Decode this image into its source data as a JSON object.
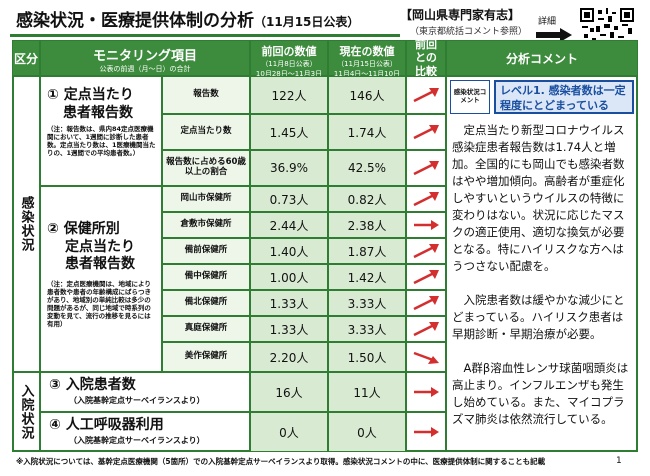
{
  "header": {
    "title_main": "感染状況・医療提供体制の分析",
    "title_date": "（11月15日公表）",
    "expert": "【岡山県専門家有志】",
    "expert_sub": "（東京都統括コメント参照）",
    "detail": "詳細"
  },
  "columns": {
    "category": "区分",
    "item": "モニタリング項目",
    "item_sub": "公表の前週（月～日）の合計",
    "prev": "前回の数値",
    "prev_sub1": "（11月8日公表）",
    "prev_sub2": "10月28日～11月3日",
    "curr": "現在の数値",
    "curr_sub1": "（11月15日公表）",
    "curr_sub2": "11月4日～11月10日",
    "compare": "前回との比較",
    "analysis": "分析コメント"
  },
  "sections": {
    "infection": "感染状況",
    "hospital": "入院状況"
  },
  "items": {
    "sentinel_title1": "① 定点当たり",
    "sentinel_title2": "患者報告数",
    "sentinel_note": "（注：報告数は、県内84定点医療機関において、1週間に診断した患者数。定点当たり数は、1医療機関当たりの、1週間での平均患者数。）",
    "health_title1": "② 保健所別",
    "health_title2": "定点当たり",
    "health_title3": "患者報告数",
    "health_note": "（注：定点医療機関は、地域により患者数や患者の年齢構成にばらつきがあり、地域別の単純比較は多少の問題があるが、同じ地域で時系列の変動を見て、流行の推移を見るには有用）",
    "hosp_title": "③ 入院患者数",
    "hosp_sub": "（入院基幹定点サーベイランスより）",
    "vent_title": "④ 人工呼吸器利用",
    "vent_sub": "（入院基幹定点サーベイランスより）"
  },
  "rows": [
    {
      "label": "報告数",
      "prev": "122人",
      "curr": "146人"
    },
    {
      "label": "定点当たり数",
      "prev": "1.45人",
      "curr": "1.74人"
    },
    {
      "label": "報告数に占める60歳以上の割合",
      "prev": "36.9%",
      "curr": "42.5%"
    },
    {
      "label": "岡山市保健所",
      "prev": "0.73人",
      "curr": "0.82人"
    },
    {
      "label": "倉敷市保健所",
      "prev": "2.44人",
      "curr": "2.38人"
    },
    {
      "label": "備前保健所",
      "prev": "1.40人",
      "curr": "1.87人"
    },
    {
      "label": "備中保健所",
      "prev": "1.00人",
      "curr": "1.42人"
    },
    {
      "label": "備北保健所",
      "prev": "1.33人",
      "curr": "3.33人"
    },
    {
      "label": "真庭保健所",
      "prev": "1.33人",
      "curr": "3.33人"
    },
    {
      "label": "美作保健所",
      "prev": "2.20人",
      "curr": "1.50人"
    },
    {
      "label": "",
      "prev": "16人",
      "curr": "11人"
    },
    {
      "label": "",
      "prev": "0人",
      "curr": "0人"
    }
  ],
  "analysis": {
    "tag": "感染状況コメント",
    "level": "レベル1. 感染者数は一定程度にとどまっている",
    "p1": "定点当たり新型コロナウイルス感染症患者報告数は1.74人と増加。全国的にも岡山でも感染者数はやや増加傾向。高齢者が重症化しやすいというウイルスの特徴に変わりはない。状況に応じたマスクの適正使用、適切な換気が必要となる。特にハイリスクな方へはうつさない配慮を。",
    "p2": "入院患者数は緩やかな減少にとどまっている。ハイリスク患者は早期診断・早期治療が必要。",
    "p3": "A群β溶血性レンサ球菌咽頭炎は高止まり。インフルエンザも発生し始めている。また、マイコプラズマ肺炎は依然流行している。"
  },
  "footnote": "※入院状況については、基幹定点医療機関（5箇所）での入院基幹定点サーベイランスより取得。感染状況コメントの中に、医療提供体制に関することも記載",
  "page": "1",
  "colors": {
    "green": "#2e7d32",
    "header_green": "#3d8b3d",
    "arrow_red": "#d32f2f",
    "level_blue": "#1a4fa0"
  }
}
